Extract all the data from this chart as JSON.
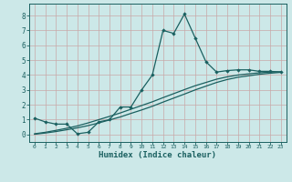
{
  "xlabel": "Humidex (Indice chaleur)",
  "ylabel": "",
  "bg_color": "#cce8e8",
  "grid_color": "#b8d0d0",
  "line_color": "#1a6060",
  "spine_color": "#1a6060",
  "xlim": [
    -0.5,
    23.5
  ],
  "ylim": [
    -0.5,
    8.8
  ],
  "xticks": [
    0,
    1,
    2,
    3,
    4,
    5,
    6,
    7,
    8,
    9,
    10,
    11,
    12,
    13,
    14,
    15,
    16,
    17,
    18,
    19,
    20,
    21,
    22,
    23
  ],
  "yticks": [
    0,
    1,
    2,
    3,
    4,
    5,
    6,
    7,
    8
  ],
  "line1_x": [
    0,
    1,
    2,
    3,
    4,
    5,
    6,
    7,
    8,
    9,
    10,
    11,
    12,
    13,
    14,
    15,
    16,
    17,
    18,
    19,
    20,
    21,
    22,
    23
  ],
  "line1_y": [
    1.1,
    0.85,
    0.7,
    0.7,
    0.05,
    0.15,
    0.85,
    1.0,
    1.85,
    1.85,
    3.0,
    4.0,
    7.0,
    6.8,
    8.1,
    6.5,
    4.9,
    4.2,
    4.3,
    4.35,
    4.35,
    4.25,
    4.25,
    4.2
  ],
  "line2_x": [
    0,
    1,
    2,
    3,
    4,
    5,
    6,
    7,
    8,
    9,
    10,
    11,
    12,
    13,
    14,
    15,
    16,
    17,
    18,
    19,
    20,
    21,
    22,
    23
  ],
  "line2_y": [
    0.05,
    0.15,
    0.28,
    0.42,
    0.58,
    0.78,
    1.0,
    1.22,
    1.45,
    1.7,
    1.95,
    2.2,
    2.48,
    2.75,
    3.02,
    3.28,
    3.5,
    3.72,
    3.88,
    4.0,
    4.08,
    4.15,
    4.2,
    4.22
  ],
  "line3_x": [
    0,
    1,
    2,
    3,
    4,
    5,
    6,
    7,
    8,
    9,
    10,
    11,
    12,
    13,
    14,
    15,
    16,
    17,
    18,
    19,
    20,
    21,
    22,
    23
  ],
  "line3_y": [
    0.02,
    0.1,
    0.2,
    0.32,
    0.45,
    0.6,
    0.78,
    0.98,
    1.18,
    1.42,
    1.65,
    1.9,
    2.18,
    2.45,
    2.72,
    3.0,
    3.25,
    3.5,
    3.7,
    3.85,
    3.95,
    4.05,
    4.12,
    4.18
  ]
}
